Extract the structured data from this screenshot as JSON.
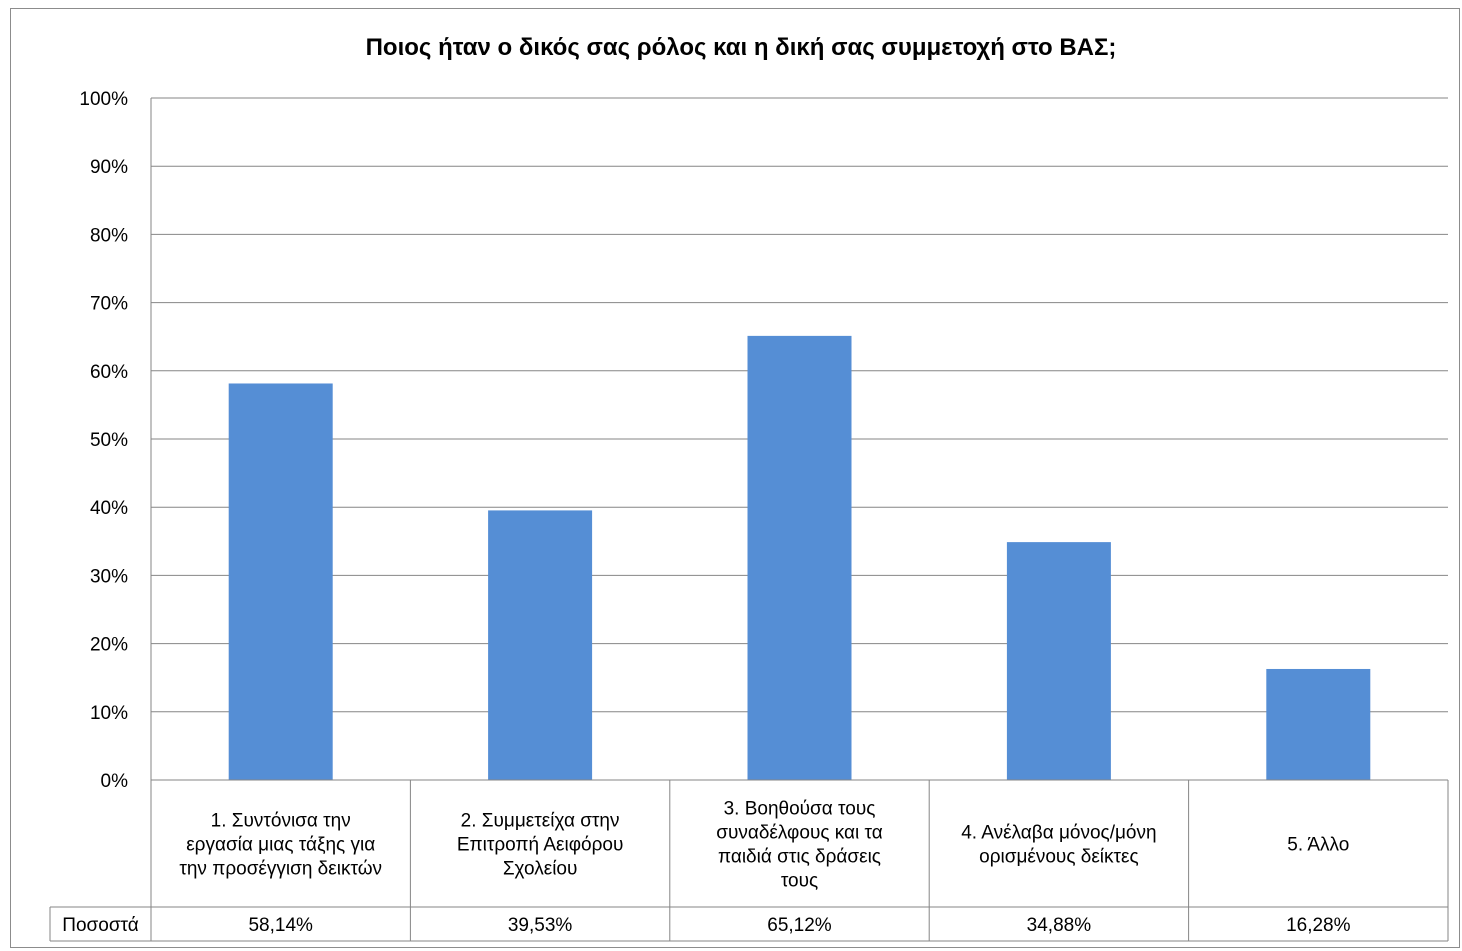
{
  "chart_data": {
    "type": "bar",
    "title": "Ποιος ήταν ο δικός σας ρόλος και η δική σας συμμετοχή στο ΒΑΣ;",
    "categories": [
      [
        "1. Συντόνισα την",
        "εργασία μιας τάξης για",
        "την προσέγγιση δεικτών"
      ],
      [
        "2. Συμμετείχα στην",
        "Επιτροπή Αειφόρου",
        "Σχολείου"
      ],
      [
        "3. Βοηθούσα τους",
        "συναδέλφους και τα",
        "παιδιά στις δράσεις",
        "τους"
      ],
      [
        "4. Ανέλαβα μόνος/μόνη",
        "ορισμένους δείκτες"
      ],
      [
        "5. Άλλο"
      ]
    ],
    "series": [
      {
        "name": "Ποσοστά",
        "values": [
          58.14,
          39.53,
          65.12,
          34.88,
          16.28
        ],
        "labels": [
          "58,14%",
          "39,53%",
          "65,12%",
          "34,88%",
          "16,28%"
        ]
      }
    ],
    "y_ticks": [
      "0%",
      "10%",
      "20%",
      "30%",
      "40%",
      "50%",
      "60%",
      "70%",
      "80%",
      "90%",
      "100%"
    ],
    "ylim": [
      0,
      100
    ],
    "grid": true,
    "data_table": true,
    "colors": {
      "bar": "#558ED5",
      "grid": "#868686",
      "text": "#000000"
    }
  }
}
